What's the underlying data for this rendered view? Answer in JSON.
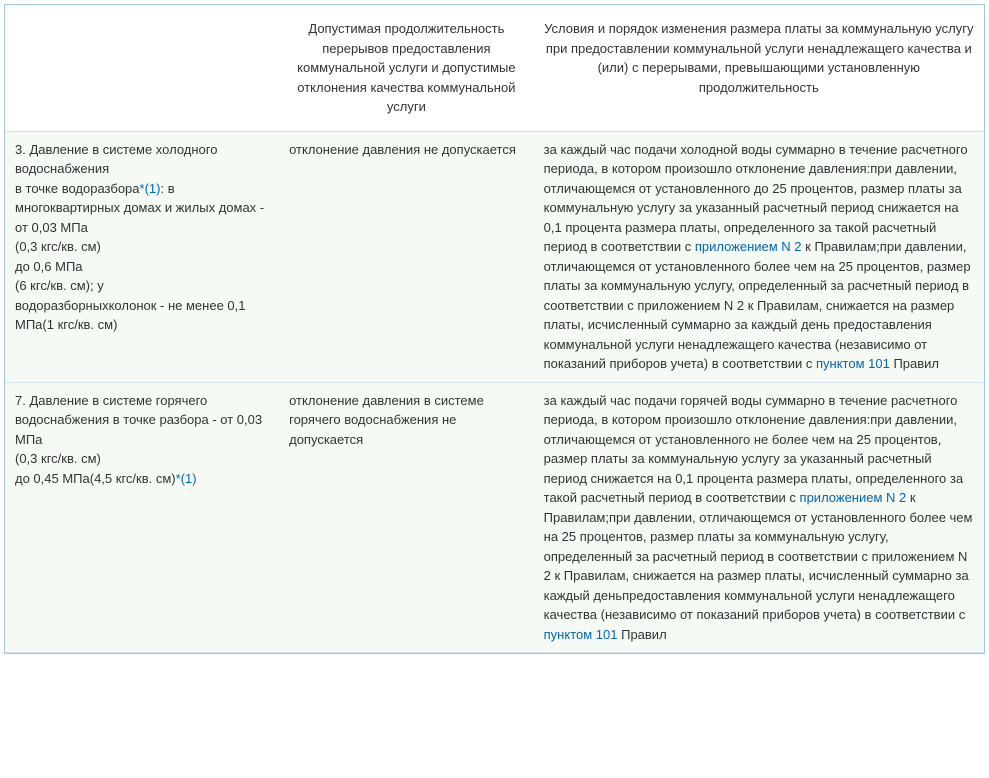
{
  "table": {
    "columns": [
      {
        "label": ""
      },
      {
        "label": "Допустимая продолжительность перерывов предоставления коммунальной услуги и допустимые отклонения качества коммунальной услуги"
      },
      {
        "label": "Условия и порядок изменения размера платы за коммунальную услугу при предоставлении коммунальной услуги ненадлежащего качества и (или) с перерывами, превышающими установленную продолжительность"
      }
    ],
    "rows": [
      {
        "c1_parts": [
          {
            "text": "3. Давление в системе холодного водоснабжения\nв точке водоразбора"
          },
          {
            "text": "*(1)",
            "link": true
          },
          {
            "text": ": в многоквартирных домах и жилых домах -\nот 0,03 МПа\n(0,3 кгс/кв. см)\nдо 0,6 МПа\n(6 кгс/кв. см); у\nводоразборныхколонок - не менее 0,1 МПа(1 кгс/кв. см)"
          }
        ],
        "c2": "отклонение давления не допускается",
        "c3_parts": [
          {
            "text": "за каждый час подачи холодной воды суммарно в течение расчетного периода, в котором произошло отклонение давления:при давлении, отличающемся от установленного до 25 процентов, размер платы за коммунальную услугу за указанный расчетный период снижается на 0,1 процента размера платы, определенного за такой расчетный период в соответствии с "
          },
          {
            "text": "приложением N 2",
            "link": true
          },
          {
            "text": " к Правилам;при давлении, отличающемся от установленного более чем на 25 процентов, размер платы за коммунальную услугу, определенный за расчетный период в соответствии с приложением N 2 к Правилам, снижается на размер платы, исчисленный суммарно за каждый день предоставления коммунальной услуги ненадлежащего качества (независимо от показаний приборов учета) в соответствии с "
          },
          {
            "text": "пунктом 101",
            "link": true
          },
          {
            "text": " Правил"
          }
        ]
      },
      {
        "c1_parts": [
          {
            "text": "7. Давление в системе горячего водоснабжения в точке разбора - от 0,03 МПа\n(0,3 кгс/кв. см)\nдо 0,45 МПа(4,5 кгс/кв. см)"
          },
          {
            "text": "*(1)",
            "link": true
          }
        ],
        "c2": "отклонение давления в системе горячего водоснабжения не допускается",
        "c3_parts": [
          {
            "text": "за каждый час подачи горячей воды суммарно в течение расчетного периода, в котором произошло отклонение давления:при давлении, отличающемся от установленного не более чем на 25 процентов, размер платы за коммунальную услугу за указанный расчетный период снижается на 0,1 процента размера платы, определенного за такой расчетный период в соответствии с "
          },
          {
            "text": "приложением N 2",
            "link": true
          },
          {
            "text": " к Правилам;при давлении, отличающемся от установленного более чем на 25 процентов, размер платы за коммунальную услугу, определенный за расчетный период в соответствии с приложением N 2 к Правилам, снижается на размер платы, исчисленный суммарно за каждый деньпредоставления коммунальной услуги ненадлежащего качества (независимо от показаний приборов учета) в соответствии с "
          },
          {
            "text": "пунктом 101",
            "link": true
          },
          {
            "text": " Правил"
          }
        ]
      }
    ]
  },
  "colors": {
    "border": "#a0c4e8",
    "row_bg": "#f5faf5",
    "link": "#0066b3",
    "inner_border": "#d0e0f0"
  }
}
